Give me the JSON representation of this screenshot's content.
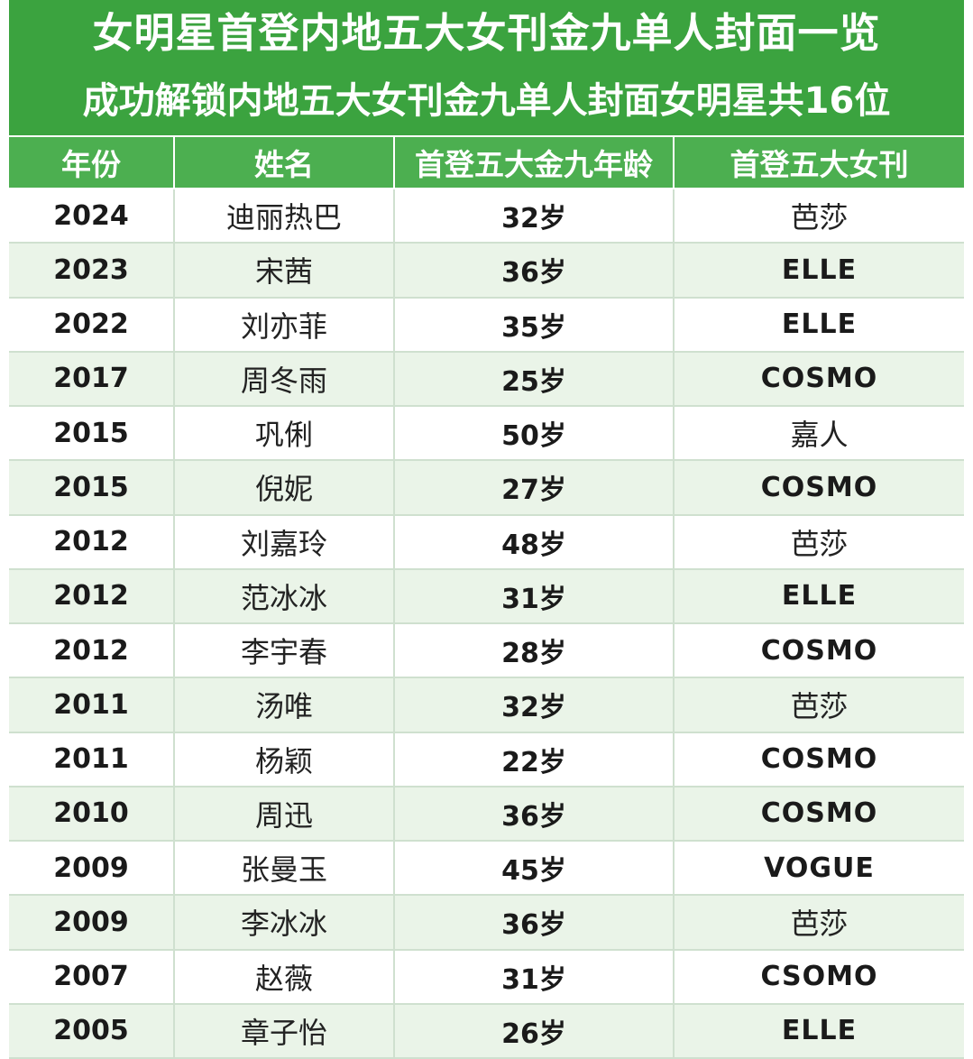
{
  "title": "女明星首登内地五大女刊金九单人封面一览",
  "subtitle": "成功解锁内地五大女刊金九单人封面女明星共16位",
  "colors": {
    "banner": "#3ba33f",
    "header": "#4caf50",
    "row_alt": "#eaf4e8",
    "row_plain": "#ffffff"
  },
  "columns": [
    "年份",
    "姓名",
    "首登五大金九年龄",
    "首登五大女刊"
  ],
  "rows": [
    {
      "year": "2024",
      "name": "迪丽热巴",
      "age": "32岁",
      "magazine": "芭莎"
    },
    {
      "year": "2023",
      "name": "宋茜",
      "age": "36岁",
      "magazine": "ELLE"
    },
    {
      "year": "2022",
      "name": "刘亦菲",
      "age": "35岁",
      "magazine": "ELLE"
    },
    {
      "year": "2017",
      "name": "周冬雨",
      "age": "25岁",
      "magazine": "COSMO"
    },
    {
      "year": "2015",
      "name": "巩俐",
      "age": "50岁",
      "magazine": "嘉人"
    },
    {
      "year": "2015",
      "name": "倪妮",
      "age": "27岁",
      "magazine": "COSMO"
    },
    {
      "year": "2012",
      "name": "刘嘉玲",
      "age": "48岁",
      "magazine": "芭莎"
    },
    {
      "year": "2012",
      "name": "范冰冰",
      "age": "31岁",
      "magazine": "ELLE"
    },
    {
      "year": "2012",
      "name": "李宇春",
      "age": "28岁",
      "magazine": "COSMO"
    },
    {
      "year": "2011",
      "name": "汤唯",
      "age": "32岁",
      "magazine": "芭莎"
    },
    {
      "year": "2011",
      "name": "杨颖",
      "age": "22岁",
      "magazine": "COSMO"
    },
    {
      "year": "2010",
      "name": "周迅",
      "age": "36岁",
      "magazine": "COSMO"
    },
    {
      "year": "2009",
      "name": "张曼玉",
      "age": "45岁",
      "magazine": "VOGUE"
    },
    {
      "year": "2009",
      "name": "李冰冰",
      "age": "36岁",
      "magazine": "芭莎"
    },
    {
      "year": "2007",
      "name": "赵薇",
      "age": "31岁",
      "magazine": "CSOMO"
    },
    {
      "year": "2005",
      "name": "章子怡",
      "age": "26岁",
      "magazine": "ELLE"
    }
  ]
}
